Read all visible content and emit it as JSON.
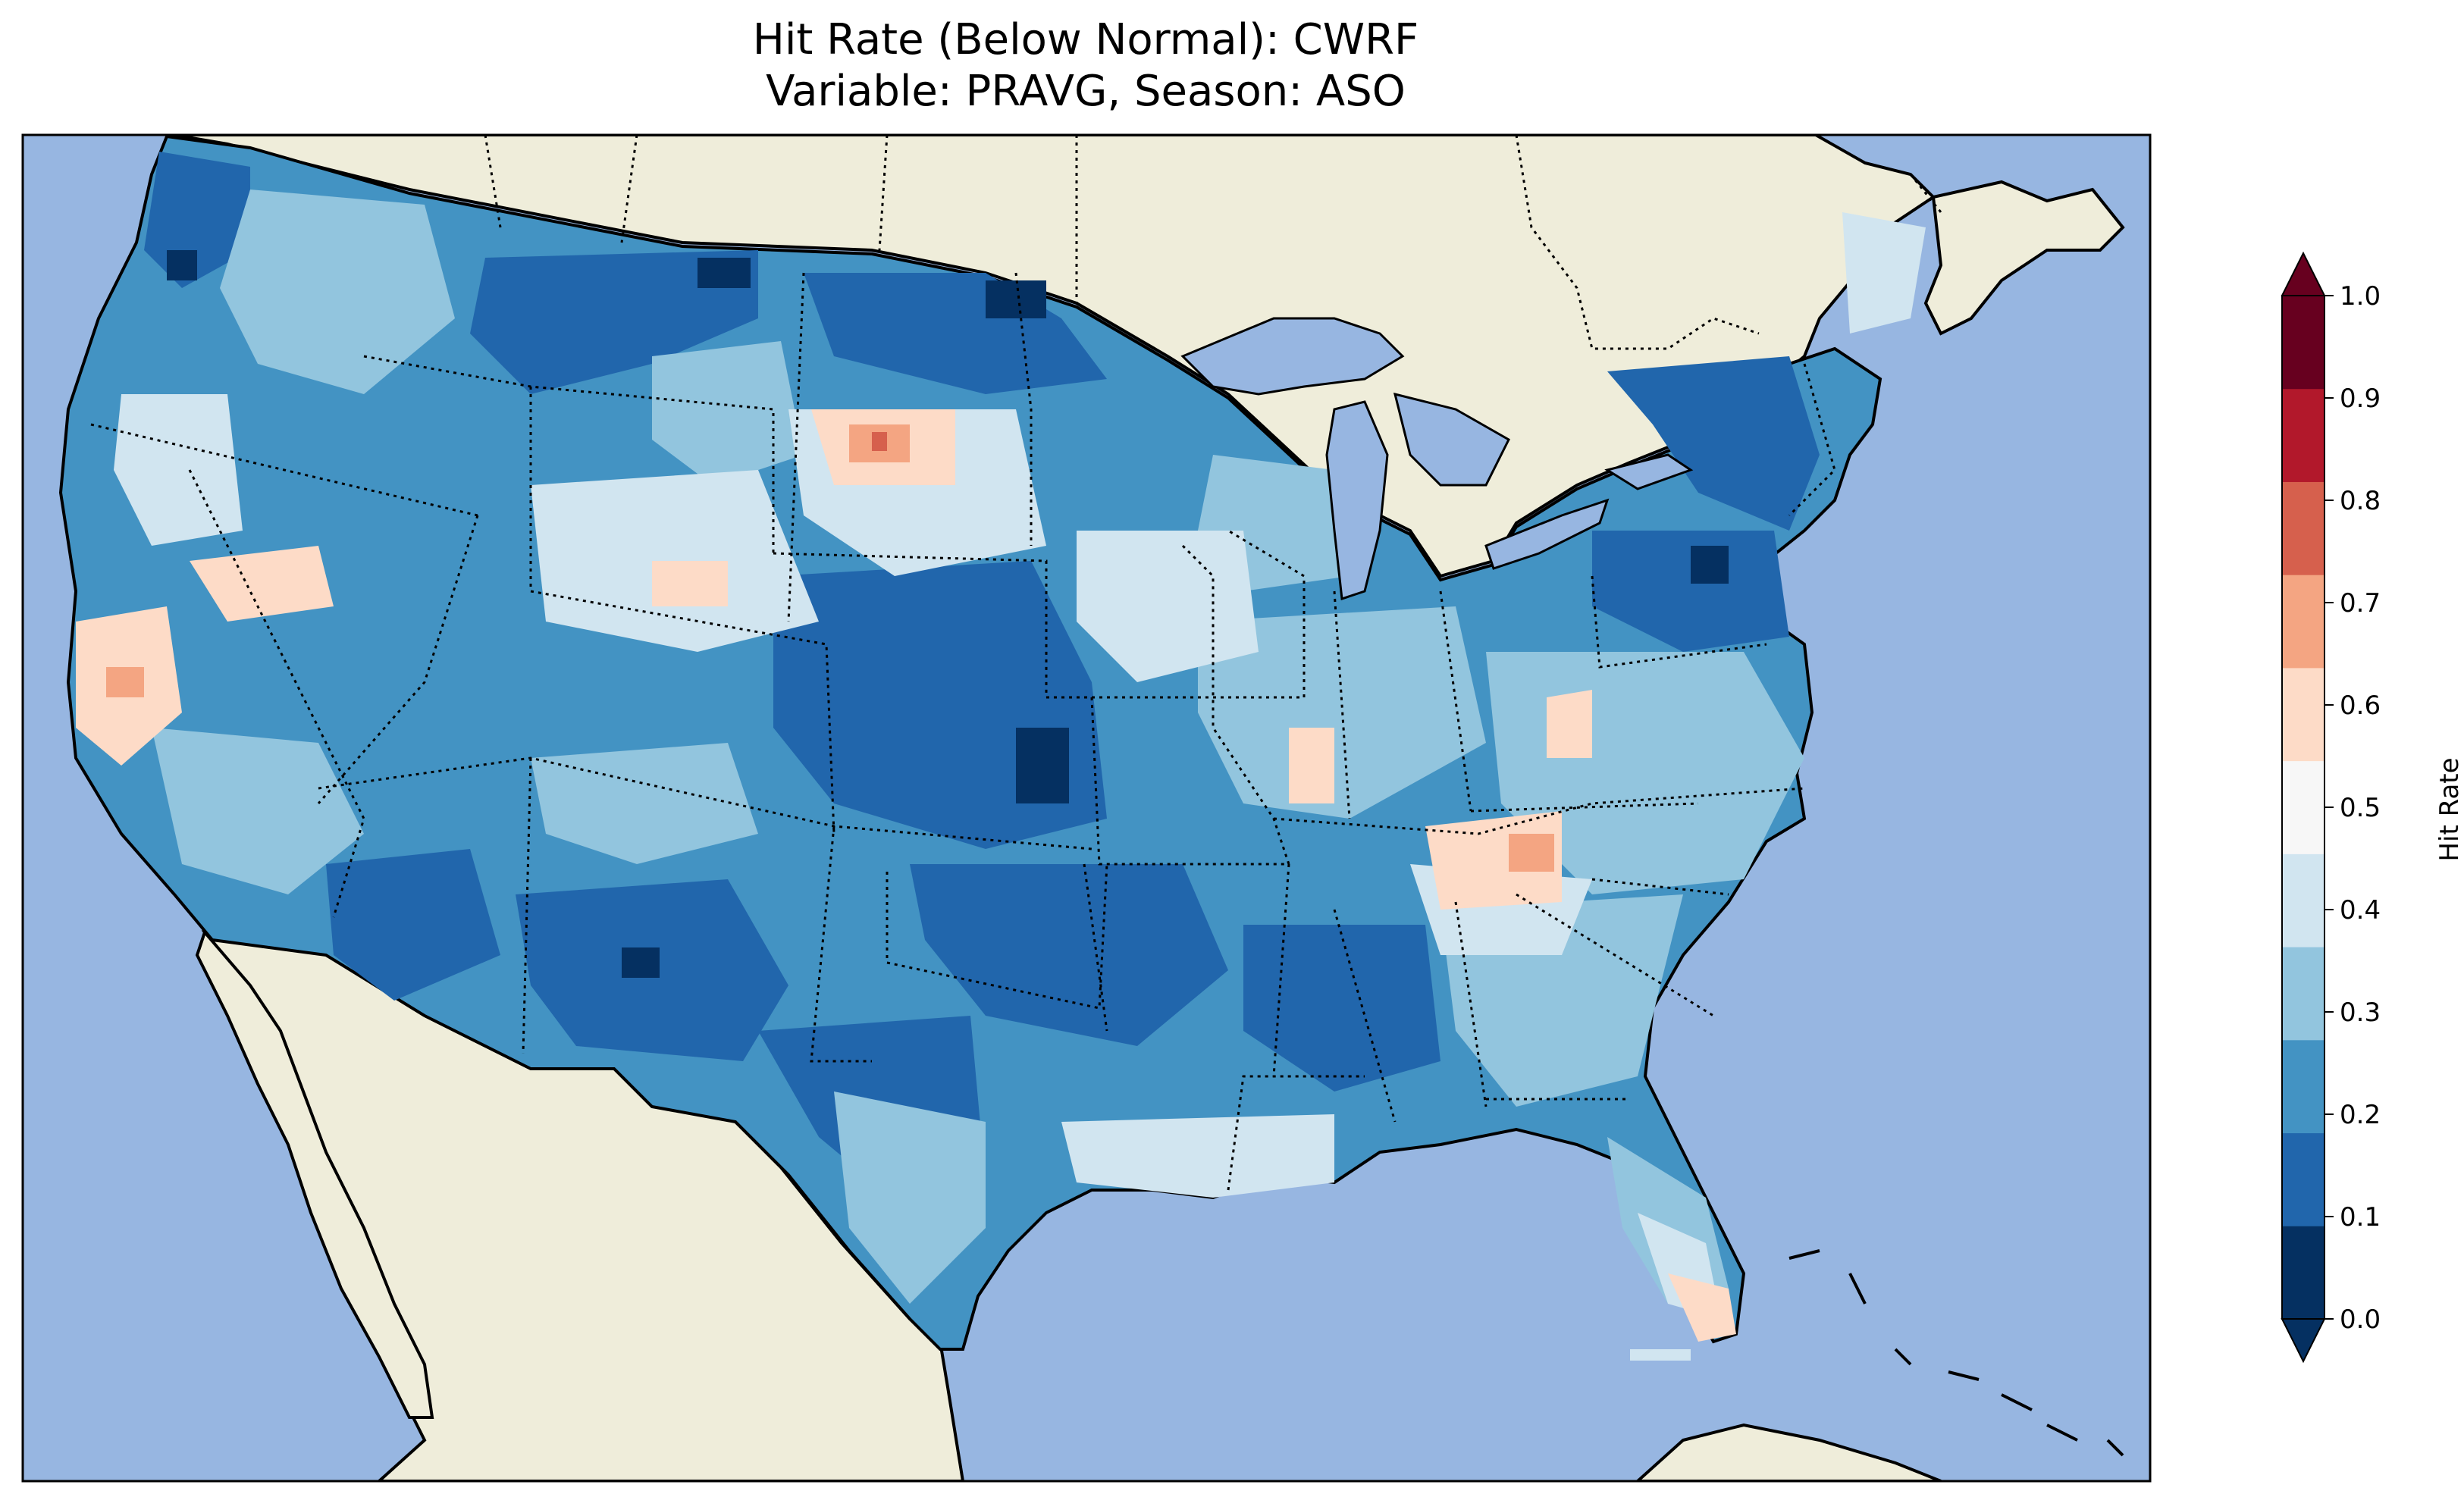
{
  "title_line1": "Hit Rate (Below Normal): CWRF",
  "title_line2": "Variable: PRAVG, Season: ASO",
  "colorbar": {
    "label": "Hit Rate",
    "ticks": [
      "0.0",
      "0.1",
      "0.2",
      "0.3",
      "0.4",
      "0.5",
      "0.6",
      "0.7",
      "0.8",
      "0.9",
      "1.0"
    ],
    "colors": [
      "#053061",
      "#2166ac",
      "#4393c3",
      "#92c5de",
      "#d1e5f0",
      "#f7f7f7",
      "#fddbc7",
      "#f4a582",
      "#d6604d",
      "#b2182b",
      "#67001f"
    ],
    "extend": "both"
  },
  "map": {
    "ocean_color": "#97b6e1",
    "land_color": "#efedda"
  }
}
